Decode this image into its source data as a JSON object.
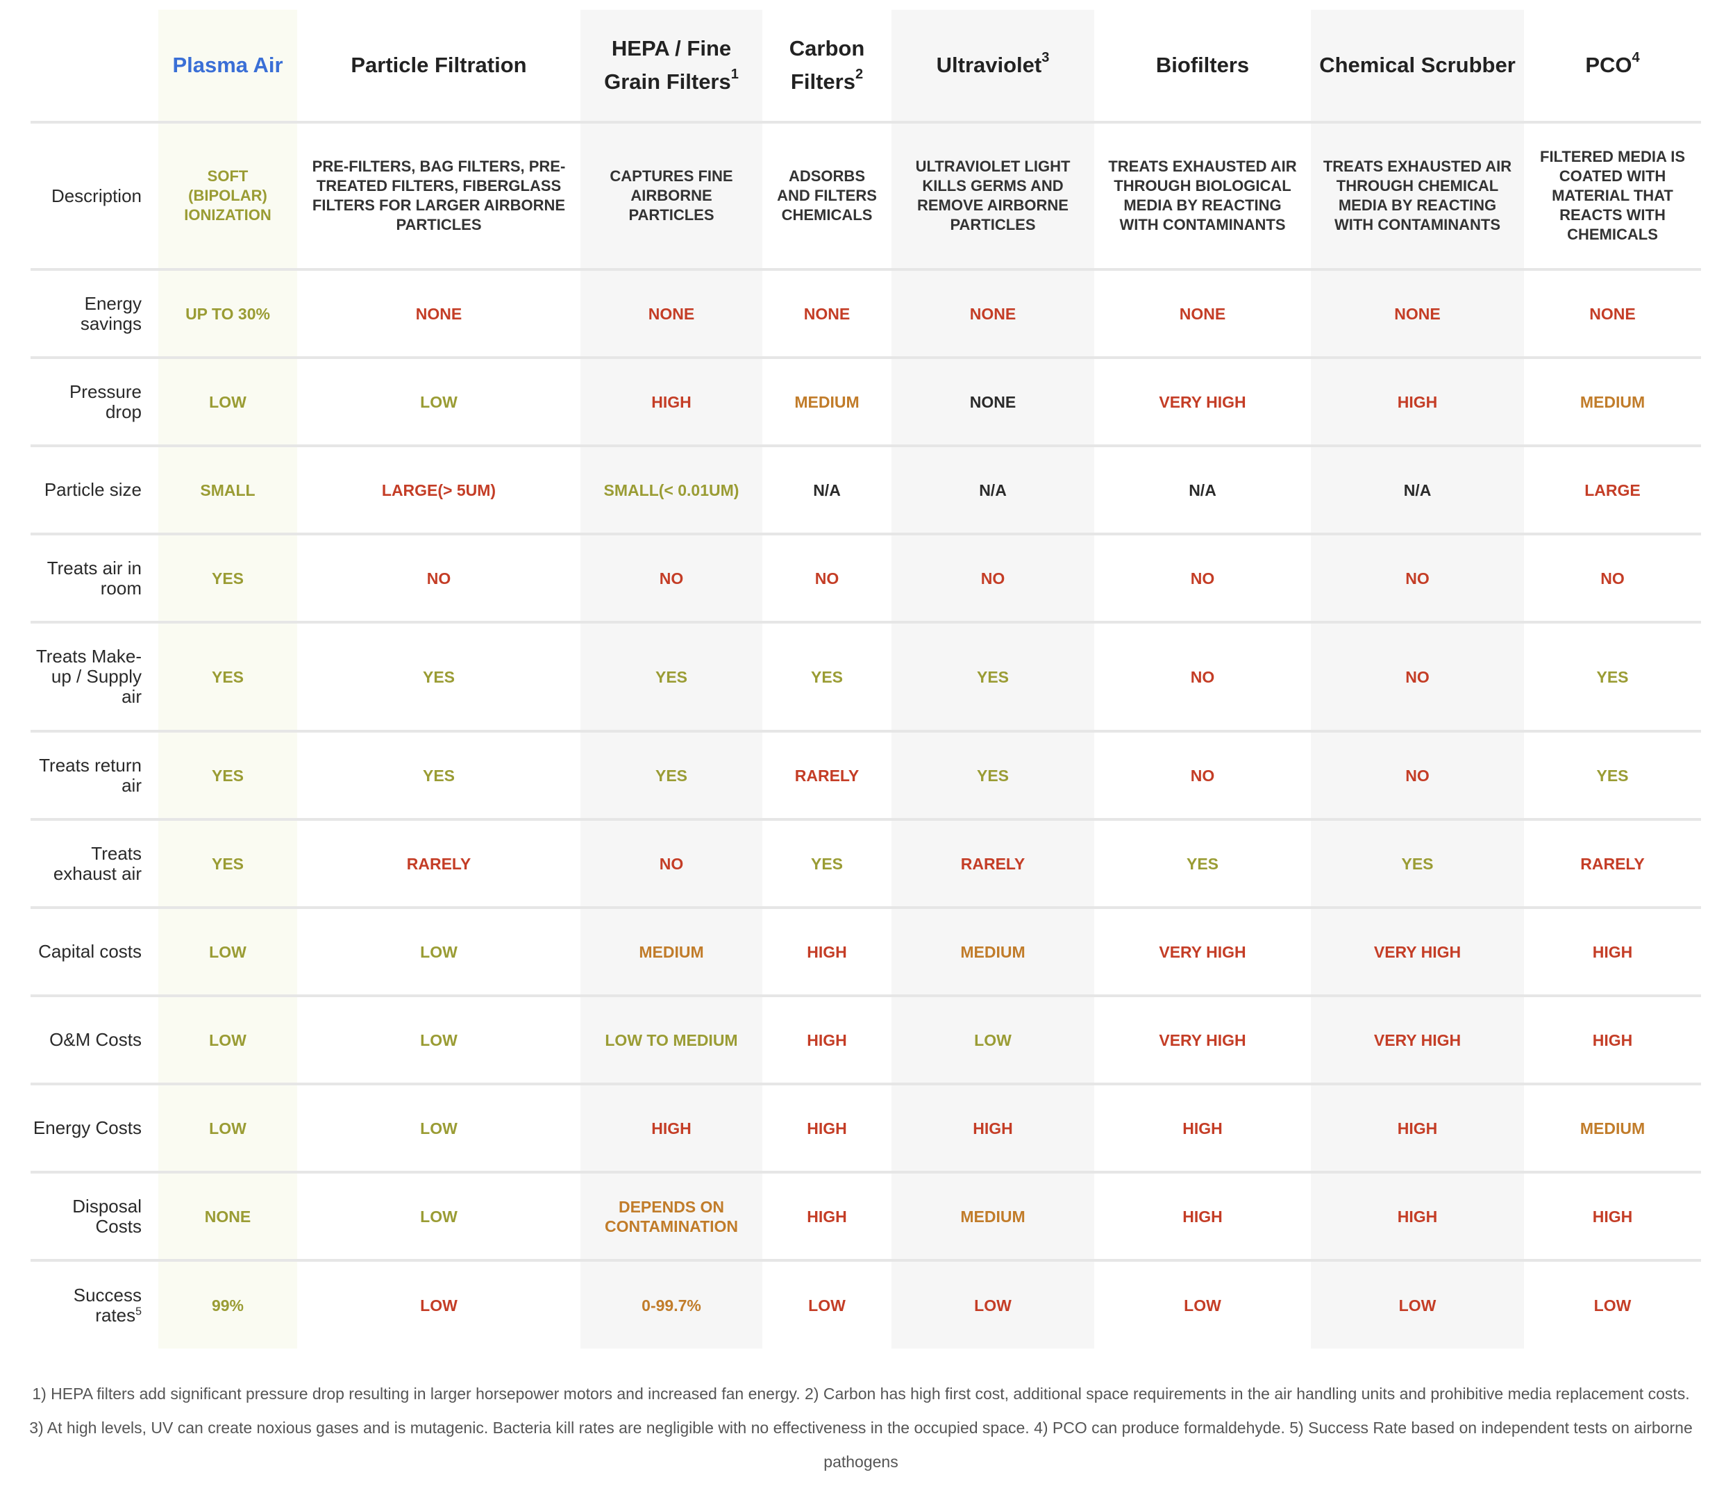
{
  "columns": [
    {
      "label": "Plasma Air"
    },
    {
      "label": "Particle Filtration"
    },
    {
      "label": "HEPA / Fine Grain Filters",
      "note": "1"
    },
    {
      "label": "Carbon Filters",
      "note": "2"
    },
    {
      "label": "Ultraviolet",
      "note": "3"
    },
    {
      "label": "Biofilters"
    },
    {
      "label": "Chemical Scrubber"
    },
    {
      "label": "PCO",
      "note": "4"
    }
  ],
  "rows": [
    {
      "label": "Description",
      "cells": [
        {
          "text": "SOFT (BIPOLAR) IONIZATION",
          "status": "green"
        },
        {
          "text": "PRE-FILTERS, BAG FILTERS, PRE-TREATED FILTERS, FIBERGLASS FILTERS FOR LARGER AIRBORNE PARTICLES",
          "status": "neutral"
        },
        {
          "text": "CAPTURES FINE AIRBORNE PARTICLES",
          "status": "neutral"
        },
        {
          "text": "ADSORBS AND FILTERS CHEMICALS",
          "status": "neutral"
        },
        {
          "text": "ULTRAVIOLET LIGHT KILLS GERMS AND REMOVE AIRBORNE PARTICLES",
          "status": "neutral"
        },
        {
          "text": "TREATS EXHAUSTED AIR THROUGH BIOLOGICAL MEDIA BY REACTING WITH CONTAMINANTS",
          "status": "neutral"
        },
        {
          "text": "TREATS EXHAUSTED AIR THROUGH CHEMICAL MEDIA BY REACTING WITH CONTAMINANTS",
          "status": "neutral"
        },
        {
          "text": "FILTERED MEDIA IS COATED WITH MATERIAL THAT REACTS WITH CHEMICALS",
          "status": "neutral"
        }
      ]
    },
    {
      "label": "Energy savings",
      "cells": [
        {
          "text": "UP TO 30%",
          "status": "green"
        },
        {
          "text": "NONE",
          "status": "red"
        },
        {
          "text": "NONE",
          "status": "red"
        },
        {
          "text": "NONE",
          "status": "red"
        },
        {
          "text": "NONE",
          "status": "red"
        },
        {
          "text": "NONE",
          "status": "red"
        },
        {
          "text": "NONE",
          "status": "red"
        },
        {
          "text": "NONE",
          "status": "red"
        }
      ]
    },
    {
      "label": "Pressure drop",
      "cells": [
        {
          "text": "LOW",
          "status": "green"
        },
        {
          "text": "LOW",
          "status": "green"
        },
        {
          "text": "HIGH",
          "status": "red"
        },
        {
          "text": "MEDIUM",
          "status": "orange"
        },
        {
          "text": "NONE",
          "status": "black"
        },
        {
          "text": "VERY HIGH",
          "status": "red"
        },
        {
          "text": "HIGH",
          "status": "red"
        },
        {
          "text": "MEDIUM",
          "status": "orange"
        }
      ]
    },
    {
      "label": "Particle size",
      "cells": [
        {
          "text": "SMALL",
          "status": "green"
        },
        {
          "text": "LARGE(> 5UM)",
          "status": "red"
        },
        {
          "text": "SMALL(< 0.01UM)",
          "status": "green"
        },
        {
          "text": "N/A",
          "status": "black"
        },
        {
          "text": "N/A",
          "status": "black"
        },
        {
          "text": "N/A",
          "status": "black"
        },
        {
          "text": "N/A",
          "status": "black"
        },
        {
          "text": "LARGE",
          "status": "red"
        }
      ]
    },
    {
      "label": "Treats air in room",
      "cells": [
        {
          "text": "YES",
          "status": "green"
        },
        {
          "text": "NO",
          "status": "red"
        },
        {
          "text": "NO",
          "status": "red"
        },
        {
          "text": "NO",
          "status": "red"
        },
        {
          "text": "NO",
          "status": "red"
        },
        {
          "text": "NO",
          "status": "red"
        },
        {
          "text": "NO",
          "status": "red"
        },
        {
          "text": "NO",
          "status": "red"
        }
      ]
    },
    {
      "label": "Treats Make-up / Supply air",
      "cells": [
        {
          "text": "YES",
          "status": "green"
        },
        {
          "text": "YES",
          "status": "green"
        },
        {
          "text": "YES",
          "status": "green"
        },
        {
          "text": "YES",
          "status": "green"
        },
        {
          "text": "YES",
          "status": "green"
        },
        {
          "text": "NO",
          "status": "red"
        },
        {
          "text": "NO",
          "status": "red"
        },
        {
          "text": "YES",
          "status": "green"
        }
      ]
    },
    {
      "label": "Treats return air",
      "cells": [
        {
          "text": "YES",
          "status": "green"
        },
        {
          "text": "YES",
          "status": "green"
        },
        {
          "text": "YES",
          "status": "green"
        },
        {
          "text": "RARELY",
          "status": "red"
        },
        {
          "text": "YES",
          "status": "green"
        },
        {
          "text": "NO",
          "status": "red"
        },
        {
          "text": "NO",
          "status": "red"
        },
        {
          "text": "YES",
          "status": "green"
        }
      ]
    },
    {
      "label": "Treats exhaust air",
      "cells": [
        {
          "text": "YES",
          "status": "green"
        },
        {
          "text": "RARELY",
          "status": "red"
        },
        {
          "text": "NO",
          "status": "red"
        },
        {
          "text": "YES",
          "status": "green"
        },
        {
          "text": "RARELY",
          "status": "red"
        },
        {
          "text": "YES",
          "status": "green"
        },
        {
          "text": "YES",
          "status": "green"
        },
        {
          "text": "RARELY",
          "status": "red"
        }
      ]
    },
    {
      "label": "Capital costs",
      "cells": [
        {
          "text": "LOW",
          "status": "green"
        },
        {
          "text": "LOW",
          "status": "green"
        },
        {
          "text": "MEDIUM",
          "status": "orange"
        },
        {
          "text": "HIGH",
          "status": "red"
        },
        {
          "text": "MEDIUM",
          "status": "orange"
        },
        {
          "text": "VERY HIGH",
          "status": "red"
        },
        {
          "text": "VERY HIGH",
          "status": "red"
        },
        {
          "text": "HIGH",
          "status": "red"
        }
      ]
    },
    {
      "label": "O&M Costs",
      "cells": [
        {
          "text": "LOW",
          "status": "green"
        },
        {
          "text": "LOW",
          "status": "green"
        },
        {
          "text": "LOW TO MEDIUM",
          "status": "green"
        },
        {
          "text": "HIGH",
          "status": "red"
        },
        {
          "text": "LOW",
          "status": "green"
        },
        {
          "text": "VERY HIGH",
          "status": "red"
        },
        {
          "text": "VERY HIGH",
          "status": "red"
        },
        {
          "text": "HIGH",
          "status": "red"
        }
      ]
    },
    {
      "label": "Energy Costs",
      "cells": [
        {
          "text": "LOW",
          "status": "green"
        },
        {
          "text": "LOW",
          "status": "green"
        },
        {
          "text": "HIGH",
          "status": "red"
        },
        {
          "text": "HIGH",
          "status": "red"
        },
        {
          "text": "HIGH",
          "status": "red"
        },
        {
          "text": "HIGH",
          "status": "red"
        },
        {
          "text": "HIGH",
          "status": "red"
        },
        {
          "text": "MEDIUM",
          "status": "orange"
        }
      ]
    },
    {
      "label": "Disposal Costs",
      "cells": [
        {
          "text": "NONE",
          "status": "green"
        },
        {
          "text": "LOW",
          "status": "green"
        },
        {
          "text": "DEPENDS ON CONTAMINATION",
          "status": "orange"
        },
        {
          "text": "HIGH",
          "status": "red"
        },
        {
          "text": "MEDIUM",
          "status": "orange"
        },
        {
          "text": "HIGH",
          "status": "red"
        },
        {
          "text": "HIGH",
          "status": "red"
        },
        {
          "text": "HIGH",
          "status": "red"
        }
      ]
    },
    {
      "label": "Success rates",
      "note": "5",
      "cells": [
        {
          "text": "99%",
          "status": "green"
        },
        {
          "text": "LOW",
          "status": "red"
        },
        {
          "text": "0-99.7%",
          "status": "orange"
        },
        {
          "text": "LOW",
          "status": "red"
        },
        {
          "text": "LOW",
          "status": "red"
        },
        {
          "text": "LOW",
          "status": "red"
        },
        {
          "text": "LOW",
          "status": "red"
        },
        {
          "text": "LOW",
          "status": "red"
        }
      ]
    }
  ],
  "footnote": "1) HEPA filters add significant pressure drop resulting in larger horsepower motors and increased fan energy. 2) Carbon has high first cost, additional space requirements in the air handling units and prohibitive media replacement costs. 3) At high levels, UV can create noxious gases and is mutagenic. Bacteria kill rates are negligible with no effectiveness in the occupied space. 4) PCO can produce formaldehyde. 5) Success Rate based on independent tests on airborne pathogens",
  "colors": {
    "highlight": "#3a6fd6",
    "good": "#9a9c34",
    "bad": "#c43d26",
    "moderate": "#c17c2a",
    "neutral": "#2a2a2a",
    "shaded_column": "#f6f6f6",
    "plasma_column": "#fafbf2"
  }
}
